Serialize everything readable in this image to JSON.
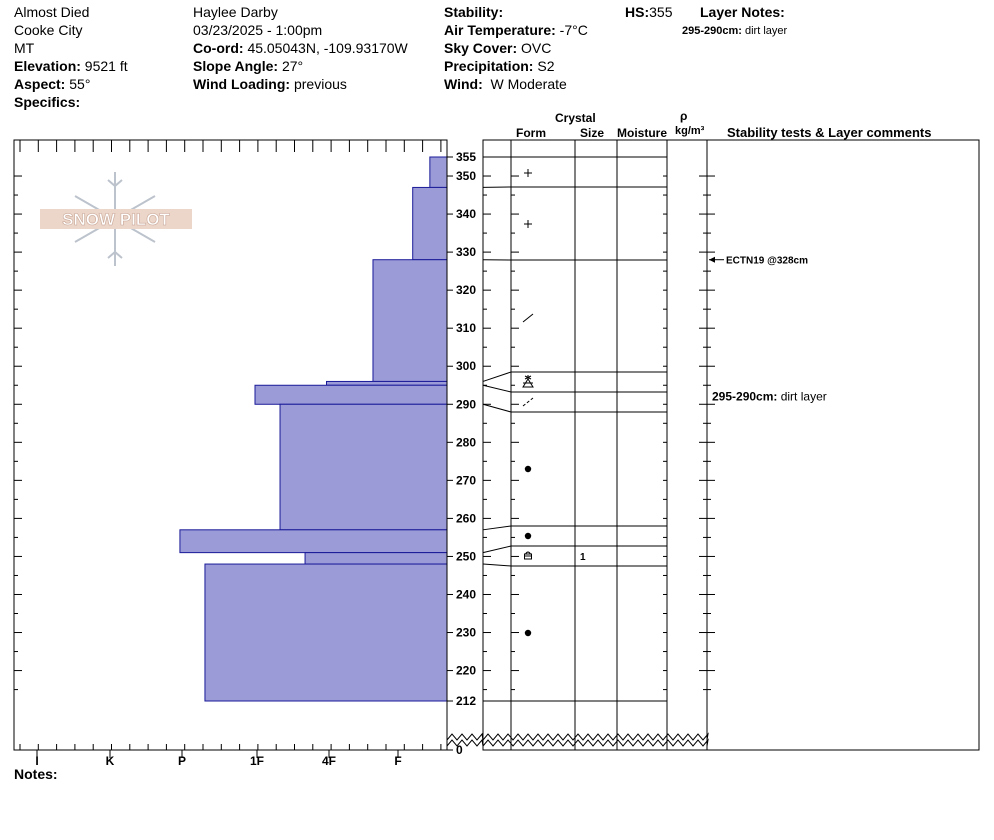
{
  "header": {
    "location_name": "Almost Died",
    "range": "Cooke City",
    "state": "MT",
    "elevation_label": "Elevation:",
    "elevation": "9521 ft",
    "aspect_label": "Aspect:",
    "aspect": "55°",
    "specifics_label": "Specifics:",
    "observer": "Haylee Darby",
    "datetime": "03/23/2025 - 1:00pm",
    "coord_label": "Co-ord:",
    "coord": "45.05043N, -109.93170W",
    "slope_label": "Slope Angle:",
    "slope": "27°",
    "wind_loading_label": "Wind Loading:",
    "wind_loading": "previous",
    "stability_label": "Stability:",
    "air_temp_label": "Air Temperature:",
    "air_temp": "-7°C",
    "sky_label": "Sky Cover:",
    "sky": "OVC",
    "precip_label": "Precipitation:",
    "precip": "S2",
    "wind_label": "Wind:",
    "wind": "W Moderate",
    "hs_label": "HS:",
    "hs": "355",
    "layer_notes_label": "Layer Notes:",
    "layer_note_depth": "295-290cm:",
    "layer_note_text": "dirt layer"
  },
  "columns": {
    "crystal": "Crystal",
    "form": "Form",
    "size": "Size",
    "moisture": "Moisture",
    "rho": "ρ",
    "density_unit": "kg/m³",
    "stability": "Stability tests & Layer comments"
  },
  "logo": {
    "text": "SNOW PILOT"
  },
  "notes_label": "Notes:",
  "colors": {
    "hardness_fill": "#9b9bd7",
    "hardness_stroke": "#1a1a99"
  },
  "chart_data": {
    "type": "bar",
    "orientation": "horizontal",
    "x_categories": [
      "I",
      "K",
      "P",
      "1F",
      "4F",
      "F"
    ],
    "y_axis_ticks": [
      355,
      350,
      340,
      330,
      320,
      310,
      300,
      290,
      280,
      270,
      260,
      250,
      240,
      230,
      220,
      212,
      0
    ],
    "ylim": [
      0,
      355
    ],
    "layers": [
      {
        "top": 355,
        "bottom": 347,
        "hardness": 0.35
      },
      {
        "top": 347,
        "bottom": 328,
        "hardness": 0.7
      },
      {
        "top": 328,
        "bottom": 296,
        "hardness": 1.35
      },
      {
        "top": 296,
        "bottom": 295,
        "hardness": 2.0
      },
      {
        "top": 295,
        "bottom": 290,
        "hardness": 3.0
      },
      {
        "top": 290,
        "bottom": 257,
        "hardness": 2.65
      },
      {
        "top": 257,
        "bottom": 251,
        "hardness": 4.05
      },
      {
        "top": 251,
        "bottom": 248,
        "hardness": 2.3
      },
      {
        "top": 248,
        "bottom": 212,
        "hardness": 3.7
      }
    ],
    "grain_rows": [
      {
        "boundary_top": 355,
        "symbol": "plus",
        "size": "",
        "label_at": 351
      },
      {
        "boundary_top": 347,
        "symbol": "plus",
        "size": "",
        "label_at": 337
      },
      {
        "boundary_top": 328,
        "symbol": "slash",
        "size": "",
        "label_at": 312
      },
      {
        "boundary_top": 296,
        "symbol": "mixed",
        "size": "",
        "label_at": 296
      },
      {
        "boundary_top": 295,
        "symbol": "dashslash",
        "size": "",
        "label_at": 291
      },
      {
        "boundary_top": 290,
        "symbol": "dot",
        "size": "",
        "label_at": 273
      },
      {
        "boundary_top": 257,
        "symbol": "dot",
        "size": "",
        "label_at": 255
      },
      {
        "boundary_top": 251,
        "symbol": "box",
        "size": "1",
        "label_at": 250
      },
      {
        "boundary_top": 248,
        "symbol": "dot",
        "size": "",
        "label_at": 230
      },
      {
        "boundary_top": 212,
        "symbol": "",
        "size": "",
        "label_at": 212
      }
    ],
    "tests": [
      {
        "depth": 328,
        "text": "ECTN19 @328cm"
      }
    ],
    "comments": [
      {
        "depth": 292,
        "depth_text": "295-290cm:",
        "text": "dirt layer"
      }
    ]
  }
}
